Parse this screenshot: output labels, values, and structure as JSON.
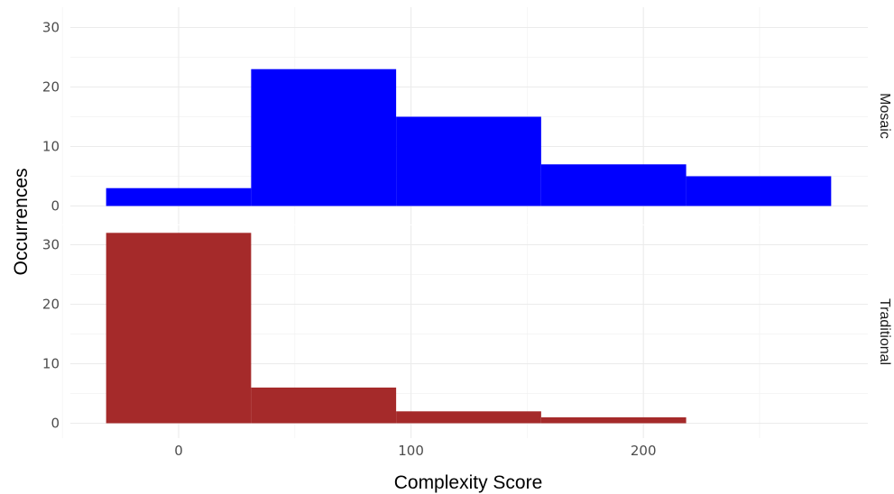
{
  "chart_data": {
    "type": "bar",
    "subtype": "faceted histogram",
    "xlabel": "Complexity Score",
    "ylabel": "Occurrences",
    "xlim": [
      -32.5,
      297.5
    ],
    "ylim": [
      0,
      32
    ],
    "x_ticks": [
      0,
      100,
      200
    ],
    "y_ticks": [
      0,
      10,
      20,
      30
    ],
    "grid": true,
    "bin_edges": [
      -31.2,
      31.2,
      93.6,
      156.0,
      218.4,
      280.8
    ],
    "facets": [
      {
        "name": "Mosaic",
        "color": "#0000ff",
        "bins": [
          {
            "x_start": -31.2,
            "x_end": 31.2,
            "count": 3
          },
          {
            "x_start": 31.2,
            "x_end": 93.6,
            "count": 23
          },
          {
            "x_start": 93.6,
            "x_end": 156.0,
            "count": 15
          },
          {
            "x_start": 156.0,
            "x_end": 218.4,
            "count": 7
          },
          {
            "x_start": 218.4,
            "x_end": 280.8,
            "count": 5
          }
        ]
      },
      {
        "name": "Traditional",
        "color": "#a52a2a",
        "bins": [
          {
            "x_start": -31.2,
            "x_end": 31.2,
            "count": 32
          },
          {
            "x_start": 31.2,
            "x_end": 93.6,
            "count": 6
          },
          {
            "x_start": 93.6,
            "x_end": 156.0,
            "count": 2
          },
          {
            "x_start": 156.0,
            "x_end": 218.4,
            "count": 1
          }
        ]
      }
    ]
  }
}
